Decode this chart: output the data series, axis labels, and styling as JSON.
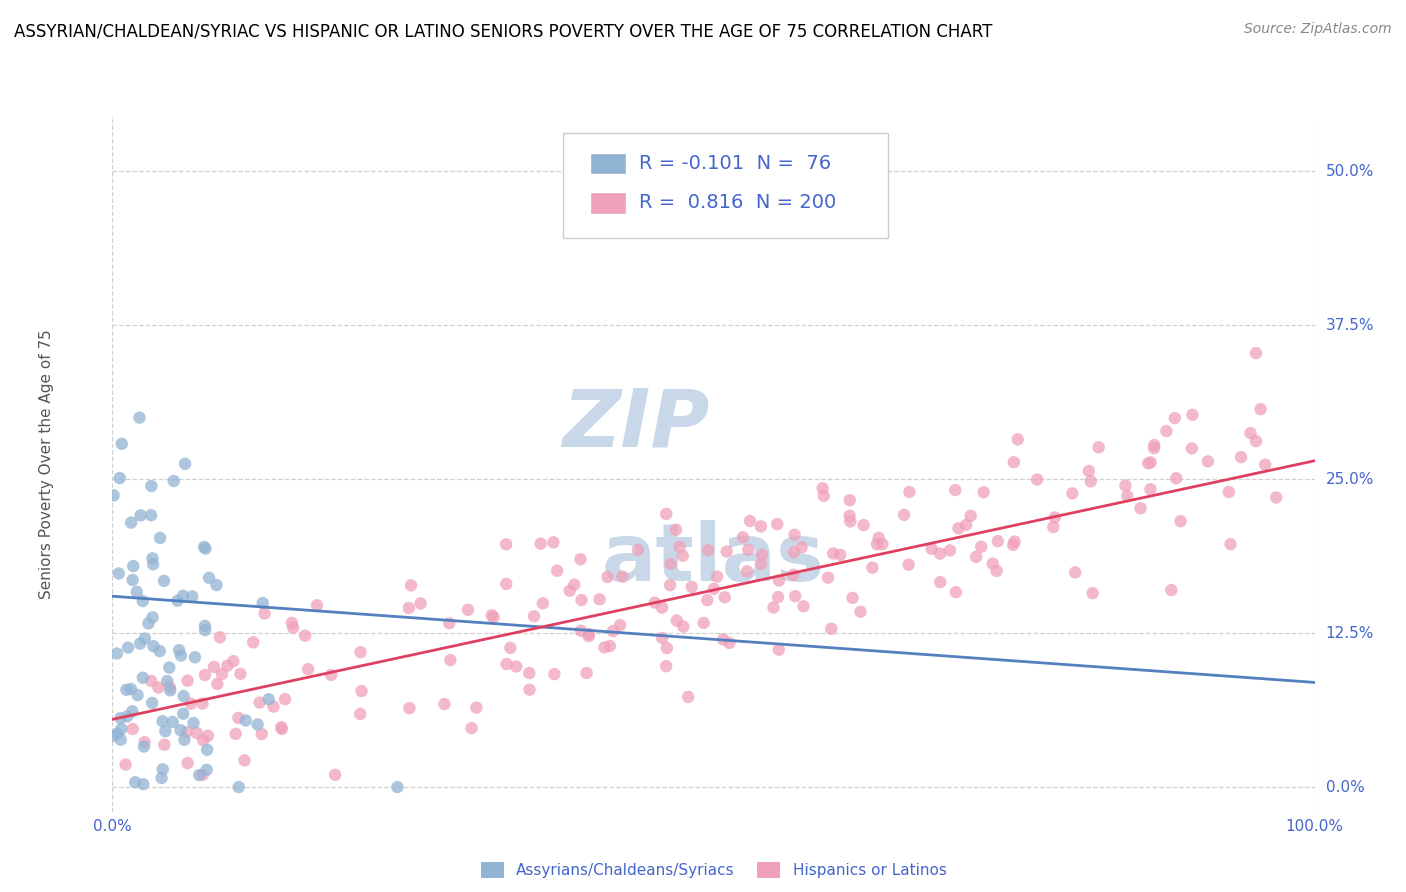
{
  "title": "ASSYRIAN/CHALDEAN/SYRIAC VS HISPANIC OR LATINO SENIORS POVERTY OVER THE AGE OF 75 CORRELATION CHART",
  "source": "Source: ZipAtlas.com",
  "ylabel": "Seniors Poverty Over the Age of 75",
  "xlim": [
    0.0,
    1.0
  ],
  "ylim": [
    -0.02,
    0.545
  ],
  "yticks": [
    0.0,
    0.125,
    0.25,
    0.375,
    0.5
  ],
  "yticklabels": [
    "0.0%",
    "12.5%",
    "25.0%",
    "37.5%",
    "50.0%"
  ],
  "xticks": [
    0.0,
    1.0
  ],
  "xticklabels": [
    "0.0%",
    "100.0%"
  ],
  "r_assyrian": -0.101,
  "n_assyrian": 76,
  "r_hispanic": 0.816,
  "n_hispanic": 200,
  "color_assyrian": "#92b4d4",
  "color_hispanic": "#f0a0b8",
  "color_line_assyrian": "#5580c0",
  "color_line_hispanic": "#e04060",
  "color_text_blue": "#4466cc",
  "color_text_dark": "#333333",
  "color_ylabel": "#555555",
  "watermark_color": "#c8d8e8",
  "grid_color": "#d0d0d0",
  "grid_style": "--",
  "background_color": "#ffffff",
  "title_fontsize": 12,
  "axis_label_fontsize": 11,
  "tick_fontsize": 11,
  "legend_fontsize": 14,
  "source_fontsize": 10,
  "assyrian_line_start_x": 0.0,
  "assyrian_line_start_y": 0.155,
  "assyrian_line_end_x": 1.0,
  "assyrian_line_end_y": 0.085,
  "hispanic_line_start_x": 0.0,
  "hispanic_line_start_y": 0.055,
  "hispanic_line_end_x": 1.0,
  "hispanic_line_end_y": 0.265
}
